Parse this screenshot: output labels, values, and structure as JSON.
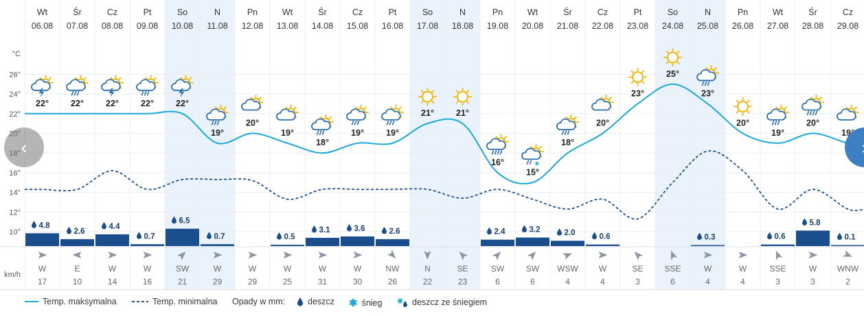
{
  "chart_data": {
    "type": "line",
    "title": "",
    "ylabel": "°C",
    "ylim": [
      8,
      28
    ],
    "yticks": [
      "10°",
      "12°",
      "14°",
      "16°",
      "18°",
      "20°",
      "22°",
      "24°",
      "26°"
    ],
    "days": [
      "Wt",
      "Śr",
      "Cz",
      "Pt",
      "So",
      "N",
      "Pn",
      "Wt",
      "Śr",
      "Cz",
      "Pt",
      "So",
      "N",
      "Pn",
      "Wt",
      "Śr",
      "Cz",
      "Pt",
      "So",
      "N",
      "Pn",
      "Wt",
      "Śr",
      "Cz"
    ],
    "dates": [
      "06.08",
      "07.08",
      "08.08",
      "09.08",
      "10.08",
      "11.08",
      "12.08",
      "13.08",
      "14.08",
      "15.08",
      "16.08",
      "17.08",
      "18.08",
      "19.08",
      "20.08",
      "21.08",
      "22.08",
      "23.08",
      "24.08",
      "25.08",
      "26.08",
      "27.08",
      "28.08",
      "29.08"
    ],
    "weekend_days": [
      4,
      5,
      11,
      12,
      18,
      19
    ],
    "series": [
      {
        "name": "Temp. maksymalna",
        "values": [
          22,
          22,
          22,
          22,
          22,
          19,
          20,
          19,
          18,
          19,
          19,
          21,
          21,
          16,
          15,
          18,
          20,
          23,
          25,
          23,
          20,
          19,
          20,
          19
        ]
      },
      {
        "name": "Temp. minimalna",
        "values": [
          14.3,
          14.3,
          16.2,
          14.3,
          15.3,
          15.3,
          15.2,
          13.3,
          14.3,
          14.3,
          14.3,
          14.3,
          13.4,
          14.3,
          13.3,
          12.3,
          13.3,
          11.3,
          15,
          18.2,
          16.2,
          12.3,
          14.3,
          12.3
        ]
      }
    ],
    "max_labels": [
      "22°",
      "22°",
      "22°",
      "22°",
      "22°",
      "19°",
      "20°",
      "19°",
      "18°",
      "19°",
      "19°",
      "21°",
      "21°",
      "16°",
      "15°",
      "18°",
      "20°",
      "23°",
      "25°",
      "23°",
      "20°",
      "19°",
      "20°",
      "19°"
    ],
    "precipitation_mm": [
      4.8,
      2.6,
      4.4,
      0.7,
      6.5,
      0.7,
      null,
      0.5,
      3.1,
      3.6,
      2.6,
      null,
      null,
      2.4,
      3.2,
      2.0,
      0.6,
      null,
      null,
      0.3,
      null,
      0.6,
      5.8,
      0.1
    ],
    "precip_labels": [
      "4.8",
      "2.6",
      "4.4",
      "0.7",
      "6.5",
      "0.7",
      "",
      "0.5",
      "3.1",
      "3.6",
      "2.6",
      "",
      "",
      "2.4",
      "3.2",
      "2.0",
      "0.6",
      "",
      "",
      "0.3",
      "",
      "0.6",
      "5.8",
      "0.1"
    ],
    "weather_icons": [
      "sun-cloud-storm-icon",
      "sun-cloud-rain-icon",
      "sun-cloud-storm-icon",
      "sun-cloud-rain-icon",
      "sun-cloud-storm-icon",
      "sun-cloud-rain-icon",
      "sun-cloud-icon",
      "sun-cloud-icon",
      "sun-cloud-rain-icon",
      "sun-cloud-rain-icon",
      "sun-cloud-rain-icon",
      "sun-icon",
      "sun-icon",
      "sun-cloud-heavy-rain-icon",
      "sun-cloud-sleet-icon",
      "sun-cloud-rain-icon",
      "sun-cloud-icon",
      "sun-icon",
      "sun-icon",
      "sun-cloud-rain-icon",
      "sun-icon",
      "sun-cloud-rain-icon",
      "sun-cloud-heavy-rain-icon",
      "sun-cloud-icon"
    ],
    "wind_unit": "km/h",
    "wind_dirs": [
      "W",
      "E",
      "W",
      "W",
      "SW",
      "W",
      "W",
      "W",
      "W",
      "W",
      "NW",
      "N",
      "SE",
      "SW",
      "SW",
      "WSW",
      "W",
      "SE",
      "SSE",
      "W",
      "W",
      "SSE",
      "W",
      "WNW"
    ],
    "wind_speeds": [
      17,
      10,
      14,
      16,
      21,
      29,
      29,
      25,
      31,
      30,
      26,
      22,
      23,
      6,
      6,
      4,
      4,
      3,
      6,
      4,
      4,
      3,
      3,
      2
    ],
    "legend": {
      "max": "Temp. maksymalna",
      "min": "Temp. minimalna",
      "precip_title": "Opady w mm:",
      "rain": "deszcz",
      "snow": "śnieg",
      "sleet": "deszcz ze śniegiem"
    }
  },
  "colors": {
    "max_line": "#1aa8d6",
    "min_line": "#1e4f8f",
    "bar": "#1a4e8c",
    "weekend": "#eaf3fb",
    "grid": "#e8edf2",
    "sun": "#f4b400",
    "cloud": "#2c6fae",
    "nav_next": "#3b7fc4"
  },
  "nav": {
    "prev": "‹",
    "next": "›"
  }
}
